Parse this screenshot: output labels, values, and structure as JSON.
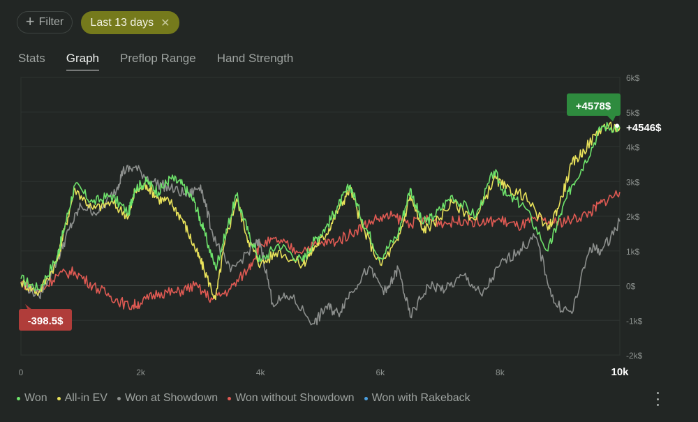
{
  "toolbar": {
    "filter_label": "Filter",
    "filter_icon": "plus-icon",
    "chip_label": "Last 13 days",
    "chip_close_icon": "close-icon"
  },
  "tabs": [
    {
      "label": "Stats",
      "active": false
    },
    {
      "label": "Graph",
      "active": true
    },
    {
      "label": "Preflop Range",
      "active": false
    },
    {
      "label": "Hand Strength",
      "active": false
    }
  ],
  "chart_data": {
    "type": "line",
    "x_ticks": [
      "0",
      "2k",
      "4k",
      "6k",
      "8k",
      "10k"
    ],
    "x_tick_values": [
      0,
      2000,
      4000,
      6000,
      8000,
      10000
    ],
    "xlim": [
      0,
      10000
    ],
    "y_ticks": [
      "6k$",
      "5k$",
      "4k$",
      "3k$",
      "2k$",
      "1k$",
      "0$",
      "-1k$",
      "-2k$"
    ],
    "y_tick_values": [
      6000,
      5000,
      4000,
      3000,
      2000,
      1000,
      0,
      -1000,
      -2000
    ],
    "ylim": [
      -2000,
      6000
    ],
    "grid": true,
    "legend_position": "bottom-left",
    "annotations": {
      "max_label": "+4578$",
      "min_label": "-398.5$",
      "end_label": "+4546$"
    },
    "series": [
      {
        "name": "Won",
        "color": "#6ee36b",
        "x": [
          0,
          300,
          600,
          700,
          900,
          1200,
          1500,
          1800,
          1900,
          2100,
          2300,
          2500,
          2700,
          2900,
          3050,
          3250,
          3400,
          3600,
          3800,
          4000,
          4300,
          4700,
          4900,
          5100,
          5300,
          5500,
          5700,
          6000,
          6300,
          6500,
          6700,
          6900,
          7200,
          7600,
          7900,
          8100,
          8400,
          8800,
          9000,
          9200,
          9400,
          9700,
          10000
        ],
        "y": [
          200,
          -100,
          800,
          1500,
          2900,
          2400,
          2600,
          2100,
          2800,
          3000,
          2700,
          3100,
          2900,
          2400,
          1600,
          500,
          1400,
          2600,
          1500,
          700,
          1200,
          700,
          1300,
          1700,
          2300,
          2900,
          1900,
          800,
          1500,
          2800,
          1800,
          2000,
          2600,
          2000,
          3300,
          2600,
          2300,
          1000,
          2000,
          2900,
          3500,
          4600,
          4546
        ]
      },
      {
        "name": "All-in EV",
        "color": "#e9e25a",
        "x": [
          0,
          300,
          600,
          700,
          900,
          1200,
          1500,
          1800,
          1900,
          2100,
          2300,
          2500,
          2700,
          2900,
          3050,
          3250,
          3400,
          3600,
          3800,
          4000,
          4300,
          4700,
          4900,
          5100,
          5300,
          5500,
          5700,
          6000,
          6300,
          6500,
          6700,
          6900,
          7200,
          7600,
          7900,
          8100,
          8400,
          8800,
          9000,
          9200,
          9400,
          9700,
          10000
        ],
        "y": [
          100,
          -200,
          700,
          1400,
          2800,
          2200,
          2400,
          2000,
          2700,
          2900,
          2500,
          2400,
          1900,
          1100,
          500,
          -400,
          1200,
          2500,
          1300,
          600,
          1000,
          600,
          1100,
          1500,
          2200,
          2800,
          1700,
          600,
          1300,
          2600,
          1600,
          1800,
          2400,
          1900,
          3100,
          2800,
          2600,
          1600,
          2400,
          3500,
          3900,
          4578,
          4546
        ]
      },
      {
        "name": "Won at Showdown",
        "color": "#8c8f8d",
        "x": [
          0,
          300,
          600,
          800,
          1000,
          1300,
          1600,
          1700,
          1900,
          2200,
          2500,
          2800,
          3000,
          3200,
          3500,
          3900,
          4000,
          4200,
          4500,
          4900,
          5100,
          5300,
          5500,
          5800,
          6100,
          6300,
          6500,
          6800,
          7100,
          7400,
          7700,
          8000,
          8300,
          8600,
          8900,
          9200,
          9500,
          9700,
          10000
        ],
        "y": [
          100,
          -300,
          700,
          1600,
          2300,
          2100,
          2800,
          3300,
          3400,
          3000,
          2800,
          2600,
          2900,
          1500,
          400,
          1200,
          1200,
          -500,
          -300,
          -1100,
          -600,
          -800,
          -200,
          500,
          -200,
          500,
          -900,
          0,
          -100,
          300,
          -300,
          600,
          1000,
          1400,
          -500,
          -800,
          1100,
          1000,
          1850
        ]
      },
      {
        "name": "Won without Showdown",
        "color": "#e05a53",
        "x": [
          0,
          300,
          600,
          900,
          1200,
          1500,
          1800,
          2000,
          2300,
          2600,
          2900,
          3200,
          3500,
          3800,
          4000,
          4300,
          4600,
          5000,
          5300,
          5600,
          5900,
          6200,
          6500,
          6800,
          7100,
          7400,
          7700,
          8000,
          8300,
          8600,
          8900,
          9200,
          9500,
          9700,
          10000
        ],
        "y": [
          100,
          -200,
          300,
          400,
          0,
          -300,
          -600,
          -500,
          -200,
          -200,
          0,
          -400,
          -100,
          500,
          1200,
          1300,
          1000,
          1200,
          1300,
          1600,
          1900,
          2000,
          1800,
          1900,
          1800,
          1900,
          1800,
          1900,
          1700,
          1900,
          1800,
          1900,
          2100,
          2400,
          2700
        ]
      },
      {
        "name": "Won with Rakeback",
        "color": "#4a9fe0",
        "x": [],
        "y": []
      }
    ]
  }
}
